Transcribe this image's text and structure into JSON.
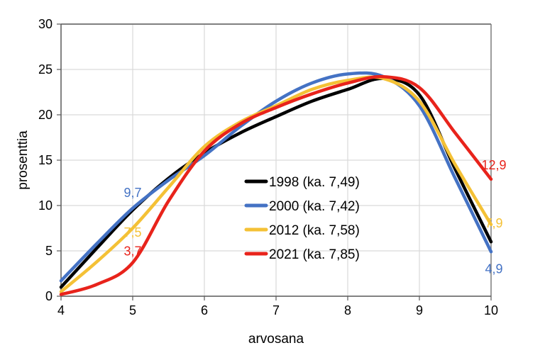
{
  "chart_data": {
    "type": "line",
    "title": "",
    "xlabel": "arvosana",
    "ylabel": "prosenttia",
    "xlim": [
      4,
      10
    ],
    "ylim": [
      0,
      30
    ],
    "x_ticks": [
      "4",
      "5",
      "6",
      "7",
      "8",
      "9",
      "10"
    ],
    "y_ticks": [
      "0",
      "5",
      "10",
      "15",
      "20",
      "25",
      "30"
    ],
    "grid": true,
    "smoothed": true,
    "legend_position": "center",
    "x": [
      4,
      4.5,
      5,
      5.5,
      6,
      6.5,
      7,
      7.5,
      8,
      8.5,
      9,
      9.5,
      10
    ],
    "series": [
      {
        "name": "1998 (ka. 7,49)",
        "color": "#000000",
        "values": [
          1.0,
          5.3,
          9.5,
          13.0,
          15.8,
          18.0,
          19.8,
          21.5,
          22.8,
          24.0,
          22.2,
          14.0,
          6.0
        ]
      },
      {
        "name": "2000 (ka. 7,42)",
        "color": "#4472C4",
        "values": [
          1.7,
          5.8,
          9.7,
          12.8,
          15.5,
          18.7,
          21.5,
          23.5,
          24.5,
          24.2,
          21.0,
          13.0,
          4.9
        ]
      },
      {
        "name": "2012 (ka. 7,58)",
        "color": "#F4C136",
        "values": [
          0.5,
          3.8,
          7.5,
          12.0,
          16.5,
          19.2,
          21.0,
          22.8,
          23.8,
          24.0,
          21.5,
          14.5,
          7.9
        ]
      },
      {
        "name": "2021 (ka. 7,85)",
        "color": "#E8231B",
        "values": [
          0.2,
          1.3,
          3.7,
          10.5,
          16.0,
          19.0,
          20.8,
          22.3,
          23.5,
          24.2,
          23.0,
          18.0,
          12.9
        ]
      }
    ],
    "data_labels": [
      {
        "series": 1,
        "x": 5,
        "y": 9.7,
        "text": "9,7"
      },
      {
        "series": 2,
        "x": 5,
        "y": 7.5,
        "text": "7,5"
      },
      {
        "series": 3,
        "x": 5,
        "y": 3.7,
        "text": "3,7"
      },
      {
        "series": 3,
        "x": 10,
        "y": 12.9,
        "text": "12,9"
      },
      {
        "series": 2,
        "x": 10,
        "y": 7.9,
        "text": "7,9"
      },
      {
        "series": 1,
        "x": 10,
        "y": 4.9,
        "text": "4,9"
      }
    ]
  }
}
